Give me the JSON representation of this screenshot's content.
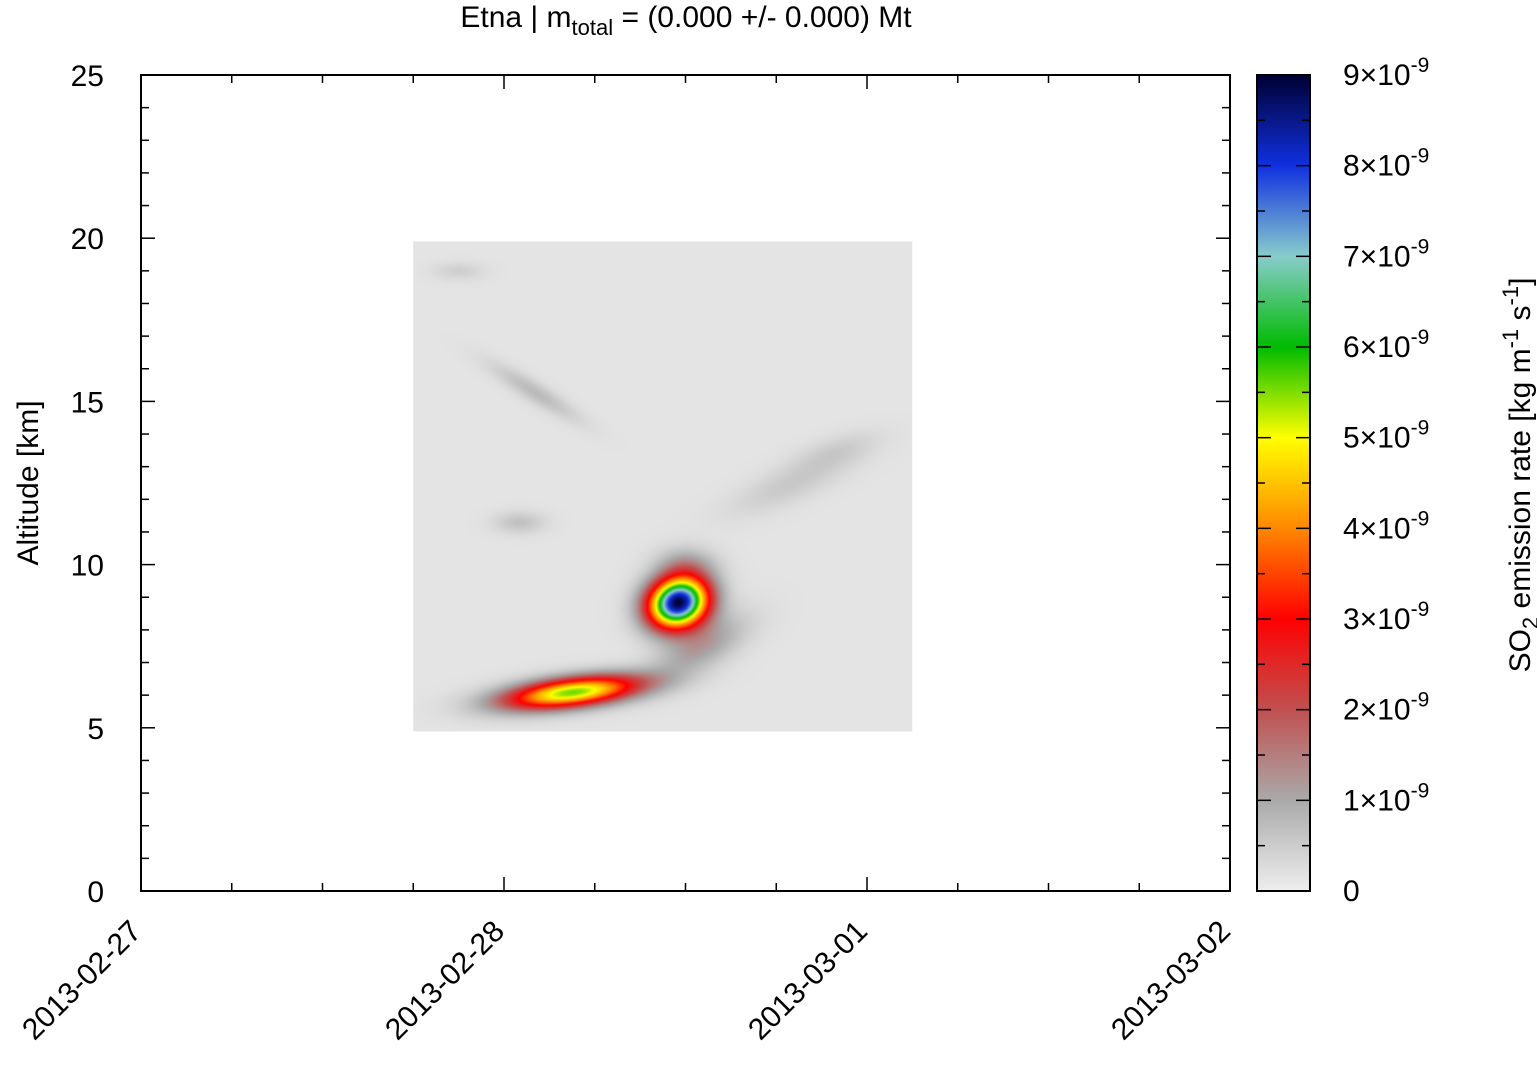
{
  "chart_data": {
    "type": "heatmap",
    "title": {
      "prefix": "Etna | m",
      "subscript": "total",
      "suffix": " = (0.000 +/- 0.000) Mt"
    },
    "xlabel": "",
    "ylabel": "Altitude [km]",
    "x_axis": {
      "type": "date",
      "range": [
        "2013-02-27",
        "2013-03-02"
      ],
      "tick_labels": [
        "2013-02-27",
        "2013-02-28",
        "2013-03-01",
        "2013-03-02"
      ]
    },
    "y_axis": {
      "range": [
        0,
        25
      ],
      "tick_labels": [
        "0",
        "5",
        "10",
        "15",
        "20",
        "25"
      ]
    },
    "colorbar": {
      "label_prefix": "SO",
      "label_sub": "2",
      "label_mid": " emission rate [kg m",
      "label_sup1": "-1",
      "label_mid2": " s",
      "label_sup2": "-1",
      "label_end": "]",
      "range": [
        0,
        9e-09
      ],
      "tick_labels": [
        {
          "mant": "0",
          "exp": ""
        },
        {
          "mant": "1×10",
          "exp": "-9"
        },
        {
          "mant": "2×10",
          "exp": "-9"
        },
        {
          "mant": "3×10",
          "exp": "-9"
        },
        {
          "mant": "4×10",
          "exp": "-9"
        },
        {
          "mant": "5×10",
          "exp": "-9"
        },
        {
          "mant": "6×10",
          "exp": "-9"
        },
        {
          "mant": "7×10",
          "exp": "-9"
        },
        {
          "mant": "8×10",
          "exp": "-9"
        },
        {
          "mant": "9×10",
          "exp": "-9"
        }
      ],
      "colors": [
        "#eeeeee",
        "#aaaaaa",
        "#c05050",
        "#ff0000",
        "#ff8800",
        "#ffff00",
        "#00bb00",
        "#88cccc",
        "#1030e0",
        "#000033"
      ]
    },
    "data_region": {
      "x": [
        "2013-02-27T18:00",
        "2013-03-01T03:00"
      ],
      "y": [
        4.9,
        19.9
      ],
      "background_value": 1.5e-10
    },
    "features": [
      {
        "x": "2013-02-28T11:30",
        "y": 8.85,
        "peak": 8.8e-09
      },
      {
        "x": "2013-02-28T04:30",
        "y": 6.1,
        "peak": 5.4e-09
      },
      {
        "x": "2013-02-28T13:00",
        "y": 7.5,
        "peak": 1e-09
      },
      {
        "x": "2013-02-28T12:00",
        "y": 10.0,
        "peak": 8e-10
      },
      {
        "x": "2013-02-28T02:00",
        "y": 15.3,
        "peak": 6e-10
      },
      {
        "x": "2013-02-28T01:00",
        "y": 11.3,
        "peak": 5e-10
      },
      {
        "x": "2013-02-28T19:00",
        "y": 12.5,
        "peak": 4e-10
      },
      {
        "x": "2013-02-28T22:00",
        "y": 13.5,
        "peak": 3e-10
      },
      {
        "x": "2013-02-27T21:00",
        "y": 19.0,
        "peak": 3e-10
      }
    ]
  }
}
